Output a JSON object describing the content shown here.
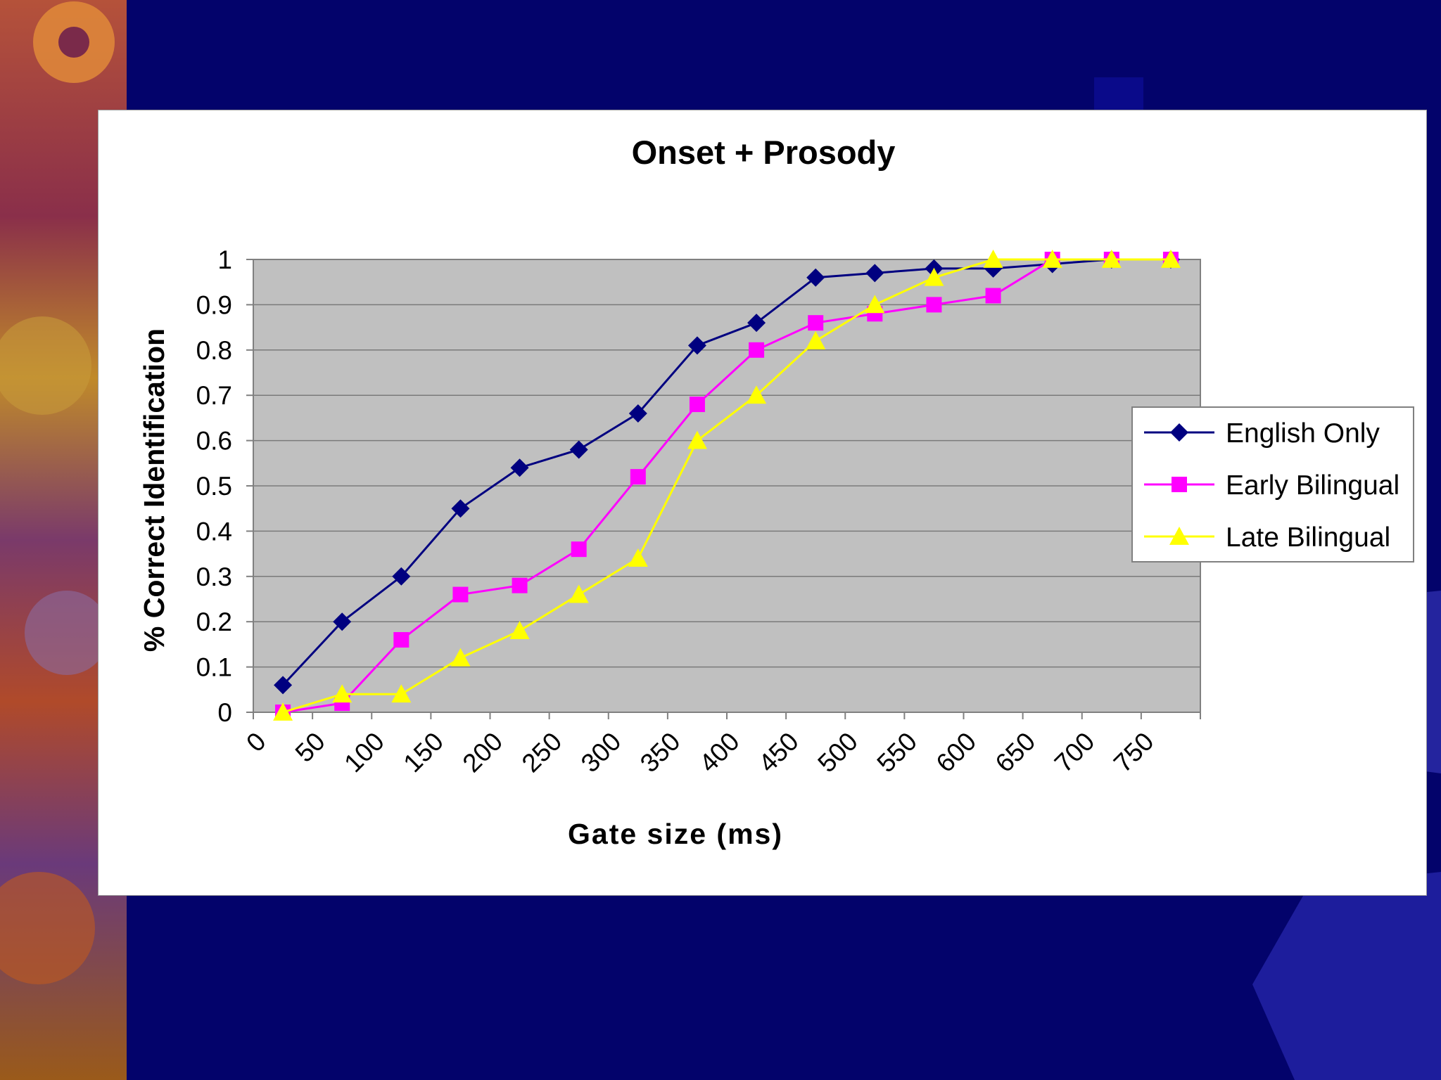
{
  "chart_data": {
    "type": "line",
    "title": "Onset + Prosody",
    "xlabel": "Gate size (ms)",
    "ylabel": "% Correct Identification",
    "x_tick_labels": [
      "0",
      "50",
      "100",
      "150",
      "200",
      "250",
      "300",
      "350",
      "400",
      "450",
      "500",
      "550",
      "600",
      "650",
      "700",
      "750"
    ],
    "y_tick_labels": [
      "0",
      "0.1",
      "0.2",
      "0.3",
      "0.4",
      "0.5",
      "0.6",
      "0.7",
      "0.8",
      "0.9",
      "1"
    ],
    "xlim": [
      0,
      800
    ],
    "ylim": [
      0,
      1
    ],
    "grid": "horizontal",
    "legend_position": "right",
    "x": [
      25,
      75,
      125,
      175,
      225,
      275,
      325,
      375,
      425,
      475,
      525,
      575,
      625,
      675,
      725,
      775
    ],
    "series": [
      {
        "name": "English Only",
        "color": "#000080",
        "marker": "diamond",
        "values": [
          0.06,
          0.2,
          0.3,
          0.45,
          0.54,
          0.58,
          0.66,
          0.81,
          0.86,
          0.96,
          0.97,
          0.98,
          0.98,
          0.99,
          1.0,
          1.0
        ]
      },
      {
        "name": "Early Bilingual",
        "color": "#ff00ff",
        "marker": "square",
        "values": [
          0.0,
          0.02,
          0.16,
          0.26,
          0.28,
          0.36,
          0.52,
          0.68,
          0.8,
          0.86,
          0.88,
          0.9,
          0.92,
          1.0,
          1.0,
          1.0
        ]
      },
      {
        "name": "Late Bilingual",
        "color": "#ffff00",
        "marker": "triangle",
        "values": [
          0.0,
          0.04,
          0.04,
          0.12,
          0.18,
          0.26,
          0.34,
          0.6,
          0.7,
          0.82,
          0.9,
          0.96,
          1.0,
          1.0,
          1.0,
          1.0
        ]
      }
    ]
  },
  "colors": {
    "slide_background": "#03036b",
    "plot_area": "#c0c0c0",
    "panel": "#ffffff"
  }
}
